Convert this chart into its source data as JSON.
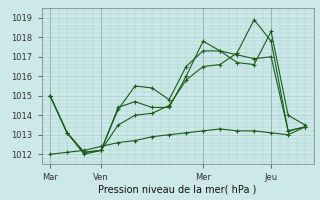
{
  "title": "Pression niveau de la mer( hPa )",
  "bg_color": "#cce8e8",
  "grid_color": "#aacccc",
  "line_color": "#1a5c1a",
  "ylim": [
    1011.5,
    1019.5
  ],
  "yticks": [
    1012,
    1013,
    1014,
    1015,
    1016,
    1017,
    1018,
    1019
  ],
  "xlim": [
    0,
    16
  ],
  "xtick_labels": [
    "Mar",
    "Ven",
    "Mer",
    "Jeu"
  ],
  "xtick_positions": [
    0.5,
    3.5,
    9.5,
    13.5
  ],
  "vline_positions": [
    0.5,
    3.5,
    9.5,
    13.5
  ],
  "series": [
    {
      "x": [
        0.5,
        1.5,
        2.5,
        3.5,
        4.5,
        5.5,
        6.5,
        7.5,
        8.5,
        9.5,
        10.5,
        11.5,
        12.5,
        13.5,
        14.5,
        15.5
      ],
      "y": [
        1015.0,
        1013.1,
        1012.0,
        1012.2,
        1014.3,
        1015.5,
        1015.4,
        1014.8,
        1016.5,
        1017.3,
        1017.3,
        1017.1,
        1016.9,
        1017.0,
        1013.2,
        1013.4
      ]
    },
    {
      "x": [
        0.5,
        1.5,
        2.5,
        3.5,
        4.5,
        5.5,
        6.5,
        7.5,
        8.5,
        9.5,
        10.5,
        11.5,
        12.5,
        13.5,
        14.5,
        15.5
      ],
      "y": [
        1015.0,
        1013.1,
        1012.1,
        1012.2,
        1014.4,
        1014.7,
        1014.4,
        1014.4,
        1016.0,
        1017.8,
        1017.3,
        1016.7,
        1016.6,
        1018.3,
        1014.0,
        1013.5
      ]
    },
    {
      "x": [
        0.5,
        1.5,
        2.5,
        3.5,
        4.5,
        5.5,
        6.5,
        7.5,
        8.5,
        9.5,
        10.5,
        11.5,
        12.5,
        13.5,
        14.5,
        15.5
      ],
      "y": [
        1015.0,
        1013.1,
        1012.1,
        1012.2,
        1013.5,
        1014.0,
        1014.1,
        1014.5,
        1015.8,
        1016.5,
        1016.6,
        1017.2,
        1018.9,
        1017.8,
        1013.2,
        1013.4
      ]
    },
    {
      "x": [
        0.5,
        1.5,
        2.5,
        3.5,
        4.5,
        5.5,
        6.5,
        7.5,
        8.5,
        9.5,
        10.5,
        11.5,
        12.5,
        13.5,
        14.5,
        15.5
      ],
      "y": [
        1012.0,
        1012.1,
        1012.2,
        1012.4,
        1012.6,
        1012.7,
        1012.9,
        1013.0,
        1013.1,
        1013.2,
        1013.3,
        1013.2,
        1013.2,
        1013.1,
        1013.0,
        1013.4
      ]
    }
  ]
}
